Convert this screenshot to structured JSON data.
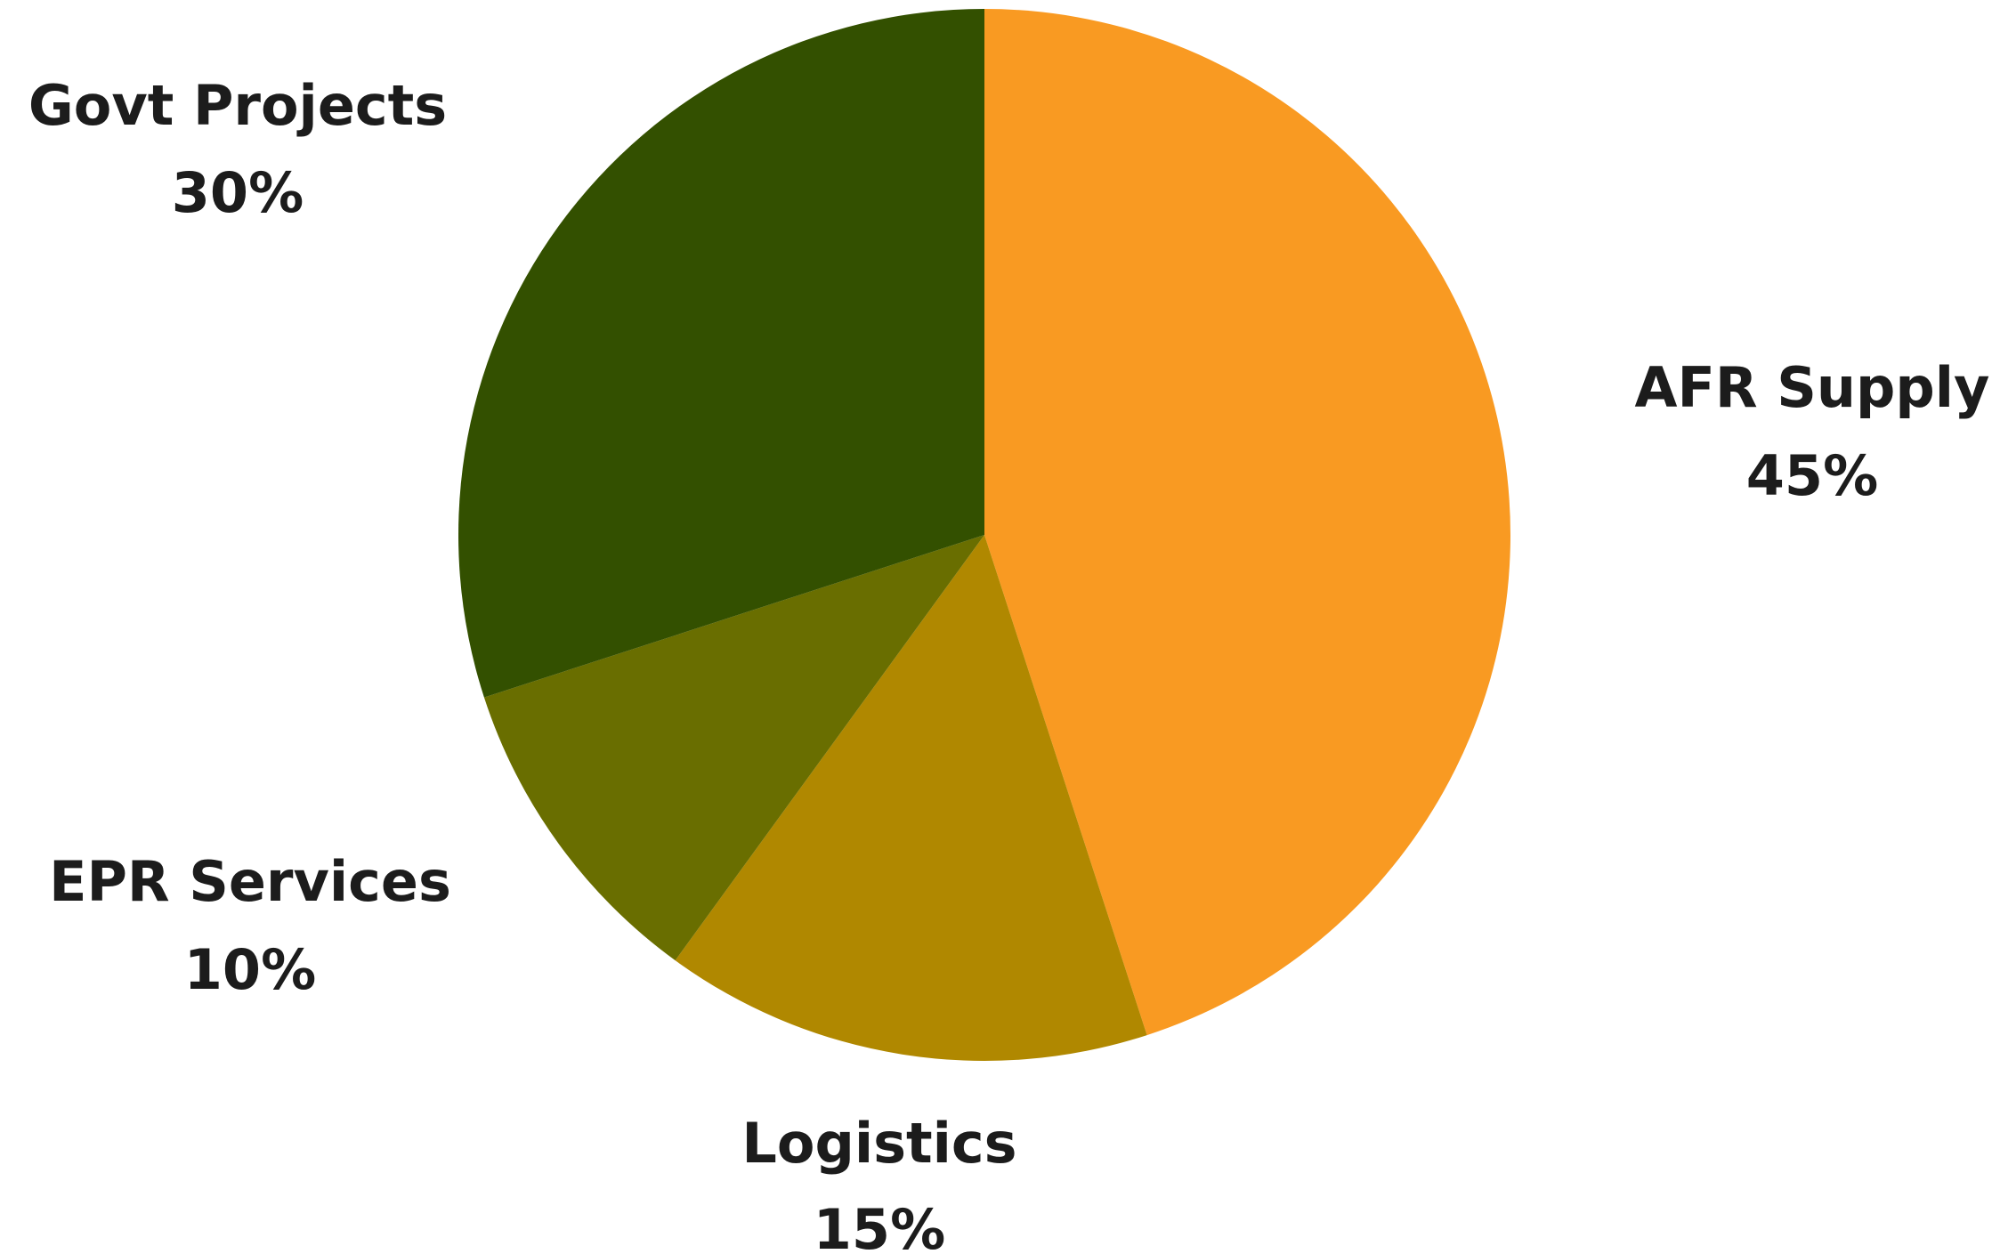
{
  "chart_data": {
    "type": "pie",
    "title": "",
    "start_angle_deg": 0,
    "direction": "clockwise",
    "legend": "none",
    "slices": [
      {
        "name": "AFR Supply",
        "value": 45,
        "label": "45%",
        "color": "#F99A22"
      },
      {
        "name": "Logistics",
        "value": 15,
        "label": "15%",
        "color": "#B08800"
      },
      {
        "name": "EPR Services",
        "value": 10,
        "label": "10%",
        "color": "#696E00"
      },
      {
        "name": "Govt Projects",
        "value": 30,
        "label": "30%",
        "color": "#335000"
      }
    ]
  }
}
